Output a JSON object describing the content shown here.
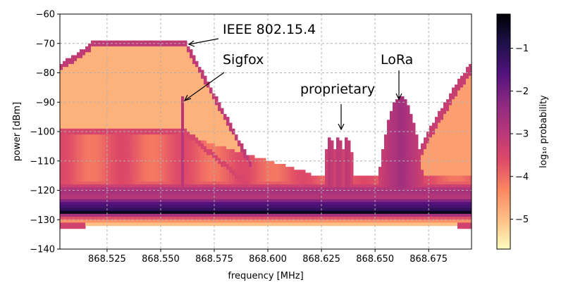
{
  "chart_data": {
    "type": "heatmap",
    "xlabel": "frequency [MHz]",
    "ylabel": "power [dBm]",
    "xlim": [
      868.503,
      868.695
    ],
    "ylim": [
      -140,
      -60
    ],
    "xticks": [
      868.525,
      868.55,
      868.575,
      868.6,
      868.625,
      868.65,
      868.675
    ],
    "xtick_labels": [
      "868.525",
      "868.550",
      "868.575",
      "868.600",
      "868.625",
      "868.650",
      "868.675"
    ],
    "yticks": [
      -60,
      -70,
      -80,
      -90,
      -100,
      -110,
      -120,
      -130,
      -140
    ],
    "ytick_labels": [
      "−60",
      "−70",
      "−80",
      "−90",
      "−100",
      "−110",
      "−120",
      "−130",
      "−140"
    ],
    "grid": true,
    "colormap": "magma_r",
    "colorbar": {
      "label": "log₁₀ probability",
      "range": [
        -5.7,
        -0.2
      ],
      "ticks": [
        -1,
        -2,
        -3,
        -4,
        -5
      ],
      "tick_labels": [
        "−1",
        "−2",
        "−3",
        "−4",
        "−5"
      ]
    },
    "annotations": [
      {
        "text": "IEEE 802.15.4",
        "x": 868.562,
        "y": -68
      },
      {
        "text": "Sigfox",
        "x": 868.561,
        "y": -89
      },
      {
        "text": "proprietary",
        "x": 868.635,
        "y": -98
      },
      {
        "text": "LoRa",
        "x": 868.662,
        "y": -89
      }
    ],
    "noise_floor_dbm": -127
  },
  "colors": {
    "cmap_stops": [
      "#fcfdbf",
      "#fec287",
      "#fb8861",
      "#de4968",
      "#b73779",
      "#8c2981",
      "#51127c",
      "#1d1147",
      "#000004"
    ]
  }
}
